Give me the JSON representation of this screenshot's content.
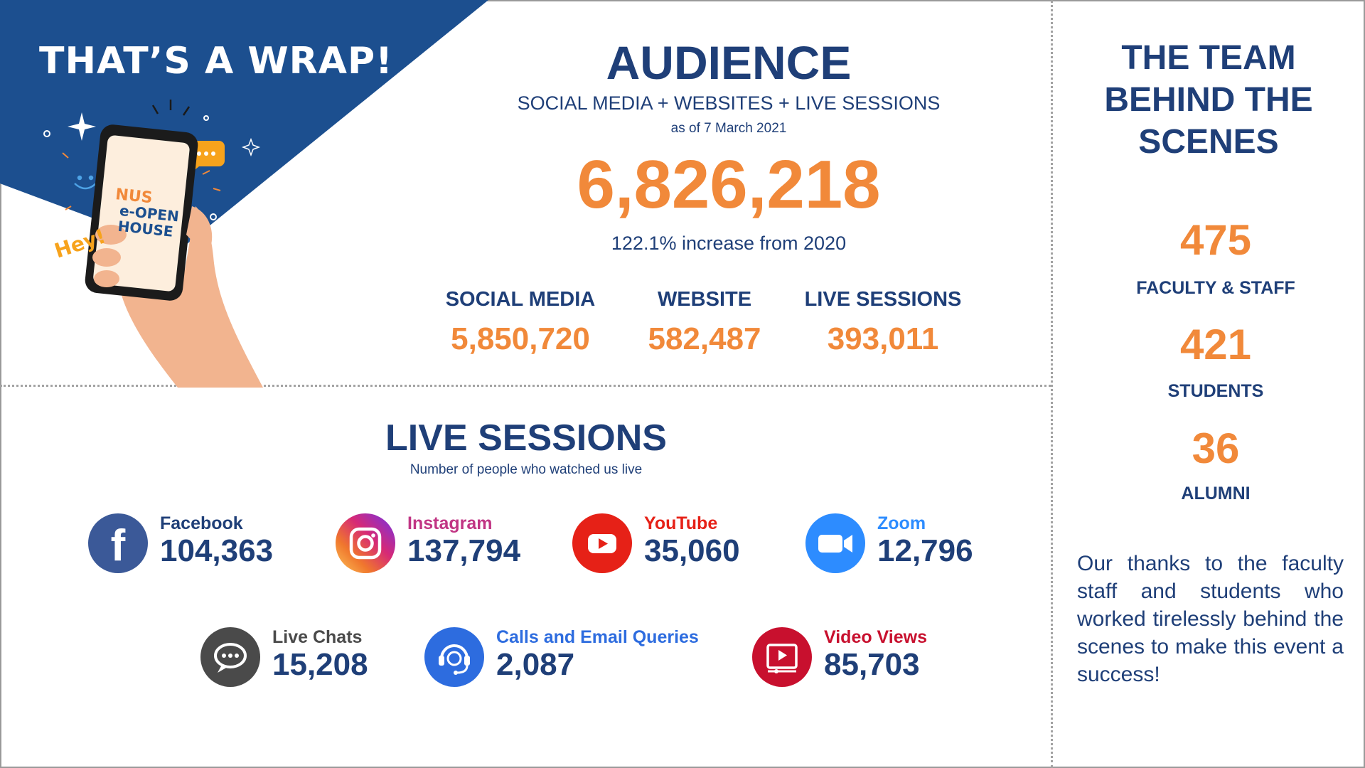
{
  "hero": {
    "title": "THAT’S A WRAP!",
    "phone_logo_lines": [
      "NUS",
      "e-OPEN",
      "HOUSE"
    ],
    "hey_text": "Hey!"
  },
  "audience": {
    "title": "AUDIENCE",
    "subtitle": "SOCIAL MEDIA + WEBSITES + LIVE SESSIONS",
    "date": "as of 7 March 2021",
    "total": "6,826,218",
    "increase": "122.1% increase from 2020",
    "breakdown": [
      {
        "label": "SOCIAL MEDIA",
        "value": "5,850,720"
      },
      {
        "label": "WEBSITE",
        "value": "582,487"
      },
      {
        "label": "LIVE SESSIONS",
        "value": "393,011"
      }
    ]
  },
  "live_sessions": {
    "title": "LIVE SESSIONS",
    "subtitle": "Number of people who watched us live",
    "platforms": [
      {
        "label": "Facebook",
        "value": "104,363",
        "icon": "facebook-icon",
        "color": "#3b5998"
      },
      {
        "label": "Instagram",
        "value": "137,794",
        "icon": "instagram-icon",
        "color": "#c13584"
      },
      {
        "label": "YouTube",
        "value": "35,060",
        "icon": "youtube-icon",
        "color": "#e62117"
      },
      {
        "label": "Zoom",
        "value": "12,796",
        "icon": "zoom-icon",
        "color": "#2d8cff"
      }
    ],
    "other": [
      {
        "label": "Live Chats",
        "value": "15,208",
        "icon": "chat-icon",
        "color": "#4a4a4a"
      },
      {
        "label": "Calls and Email Queries",
        "value": "2,087",
        "icon": "headset-icon",
        "color": "#2d6cdf"
      },
      {
        "label": "Video Views",
        "value": "85,703",
        "icon": "video-icon",
        "color": "#c8102e"
      }
    ]
  },
  "team": {
    "title_lines": [
      "THE TEAM",
      "BEHIND THE",
      "SCENES"
    ],
    "stats": [
      {
        "value": "475",
        "label": "FACULTY & STAFF"
      },
      {
        "value": "421",
        "label": "STUDENTS"
      },
      {
        "value": "36",
        "label": "ALUMNI"
      }
    ],
    "thanks": "Our thanks to the faculty staff and students who worked tirelessly behind the scenes to make this event a success!"
  },
  "colors": {
    "navy": "#1f3f78",
    "orange": "#f1893a",
    "hero_blue": "#1c4f8f"
  }
}
